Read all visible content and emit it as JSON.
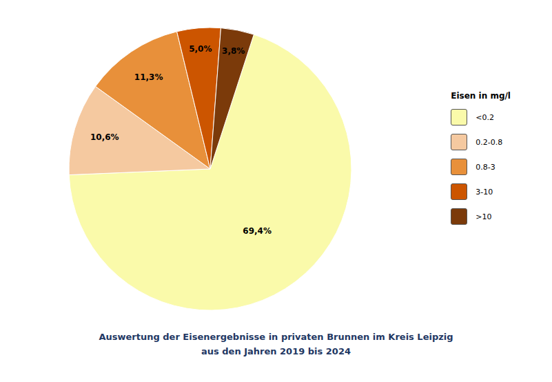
{
  "chart_data": {
    "type": "pie",
    "title": "Auswertung der Eisenergebnisse in privaten Brunnen im Kreis Leipzig",
    "subtitle": "aus den Jahren 2019 bis 2024",
    "title_color": "#1F3864",
    "categories": [
      "<0.2",
      "0.2-0.8",
      "0.8-3",
      "3-10",
      ">10"
    ],
    "values": [
      69.4,
      10.6,
      11.3,
      5.0,
      3.8
    ],
    "value_labels": [
      "69,4%",
      "10,6%",
      "11,3%",
      "5,0%",
      "3,8%"
    ],
    "colors": [
      "#FAFAAA",
      "#F5C9A0",
      "#E8903A",
      "#CC5500",
      "#7B3A0A"
    ],
    "legend_title": "Eisen in mg/l",
    "legend": "right",
    "data_labels": true
  }
}
